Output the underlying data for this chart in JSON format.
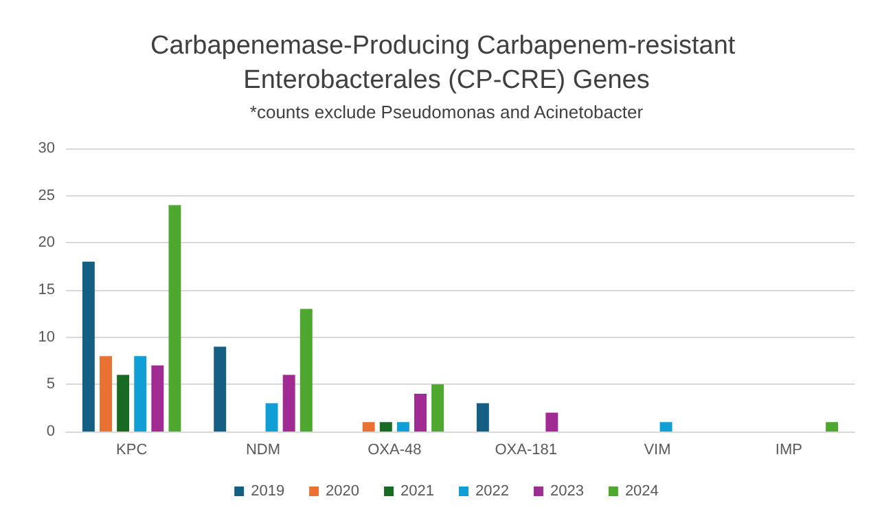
{
  "chart_data": {
    "type": "bar",
    "title": "Carbapenemase-Producing Carbapenem-resistant Enterobacterales (CP-CRE) Genes",
    "subtitle": "*counts exclude Pseudomonas and Acinetobacter",
    "categories": [
      "KPC",
      "NDM",
      "OXA-48",
      "OXA-181",
      "VIM",
      "IMP"
    ],
    "series": [
      {
        "name": "2019",
        "color": "#156082",
        "values": [
          18,
          9,
          0,
          3,
          0,
          0
        ]
      },
      {
        "name": "2020",
        "color": "#e97132",
        "values": [
          8,
          0,
          1,
          0,
          0,
          0
        ]
      },
      {
        "name": "2021",
        "color": "#196b24",
        "values": [
          6,
          0,
          1,
          0,
          0,
          0
        ]
      },
      {
        "name": "2022",
        "color": "#0f9ed5",
        "values": [
          8,
          3,
          1,
          0,
          1,
          0
        ]
      },
      {
        "name": "2023",
        "color": "#a02b93",
        "values": [
          7,
          6,
          4,
          2,
          0,
          0
        ]
      },
      {
        "name": "2024",
        "color": "#4ea72e",
        "values": [
          24,
          13,
          5,
          0,
          0,
          1
        ]
      }
    ],
    "ylim": [
      0,
      30
    ],
    "yticks": [
      0,
      5,
      10,
      15,
      20,
      25,
      30
    ],
    "grid": "y",
    "legend": "bottom"
  }
}
